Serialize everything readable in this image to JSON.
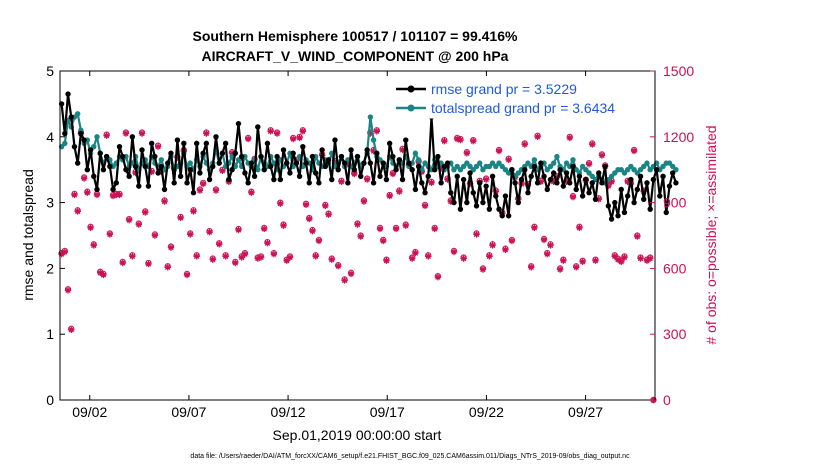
{
  "chart_data": {
    "type": "line",
    "title": "Southern Hemisphere 100517 / 101107 = 99.416%",
    "subtitle": "AIRCRAFT_V_WIND_COMPONENT @ 200 hPa",
    "xlabel": "Sep.01,2019 00:00:00 start",
    "ylabel_left": "rmse and totalspread",
    "ylabel_right": "# of obs: o=possible; ×=assimilated",
    "xlim": [
      0.5,
      30.5
    ],
    "ylim_left": [
      0,
      5
    ],
    "ylim_right": [
      0,
      1500
    ],
    "x_ticks": [
      {
        "x": 2,
        "label": "09/02"
      },
      {
        "x": 7,
        "label": "09/07"
      },
      {
        "x": 12,
        "label": "09/12"
      },
      {
        "x": 17,
        "label": "09/17"
      },
      {
        "x": 22,
        "label": "09/22"
      },
      {
        "x": 27,
        "label": "09/27"
      }
    ],
    "y_ticks_left": [
      "0",
      "1",
      "2",
      "3",
      "4",
      "5"
    ],
    "y_ticks_right": [
      "0",
      "300",
      "600",
      "900",
      "1200",
      "1500"
    ],
    "footer": "data file: /Users/raeder/DAI/ATM_forcXX/CAM6_setup/f.e21.FHIST_BGC.f09_025.CAM6assim.011/Diags_NTrS_2019-09/obs_diag_output.nc",
    "legend_position": "top-right",
    "colors": {
      "rmse": "#000000",
      "spread": "#1a8585",
      "obs": "#cc1155"
    },
    "series": [
      {
        "name": "rmse grand pr = 3.5229",
        "axis": "left",
        "values": [
          4.5,
          4.05,
          4.65,
          4.3,
          3.85,
          3.6,
          4.05,
          3.95,
          3.5,
          3.8,
          3.4,
          3.2,
          3.75,
          3.5,
          3.7,
          3.55,
          3.2,
          3.3,
          3.85,
          3.7,
          3.5,
          3.4,
          4.0,
          3.55,
          3.25,
          3.8,
          3.55,
          3.25,
          3.9,
          3.7,
          3.45,
          3.55,
          3.2,
          3.6,
          3.75,
          3.3,
          3.95,
          3.4,
          3.9,
          3.3,
          3.5,
          3.15,
          3.9,
          3.45,
          3.75,
          3.9,
          3.35,
          3.55,
          4.0,
          3.6,
          3.75,
          3.9,
          3.35,
          3.5,
          3.75,
          4.2,
          3.7,
          3.45,
          3.3,
          3.6,
          3.4,
          4.15,
          3.7,
          3.5,
          3.9,
          3.55,
          3.35,
          3.7,
          3.35,
          3.8,
          3.6,
          3.45,
          3.75,
          3.6,
          3.4,
          3.85,
          3.6,
          3.3,
          3.7,
          3.45,
          3.3,
          3.8,
          3.55,
          3.65,
          3.35,
          3.95,
          3.5,
          3.7,
          3.6,
          3.3,
          3.8,
          3.5,
          3.7,
          3.4,
          3.6,
          3.8,
          3.6,
          3.3,
          3.75,
          3.4,
          3.6,
          3.35,
          3.9,
          3.7,
          3.5,
          3.65,
          3.35,
          3.95,
          3.6,
          3.5,
          3.2,
          3.55,
          3.3,
          3.15,
          3.4,
          4.3,
          3.5,
          3.7,
          3.3,
          3.55,
          3.6,
          3.15,
          3.0,
          3.4,
          2.9,
          3.35,
          3.0,
          3.45,
          3.15,
          2.95,
          3.3,
          3.0,
          3.25,
          2.9,
          3.4,
          3.1,
          2.9,
          2.8,
          3.1,
          2.8,
          3.5,
          3.3,
          3.0,
          3.35,
          3.5,
          3.15,
          3.4,
          3.55,
          3.3,
          3.6,
          3.4,
          3.2,
          3.35,
          3.45,
          3.3,
          3.5,
          3.25,
          3.45,
          3.3,
          3.55,
          3.2,
          3.4,
          3.1,
          3.35,
          3.15,
          3.3,
          3.05,
          3.45,
          3.3,
          3.55,
          2.95,
          2.75,
          3.0,
          2.8,
          3.2,
          2.85,
          3.1,
          3.35,
          3.0,
          3.2,
          3.4,
          3.05,
          3.3,
          2.9,
          3.35,
          3.5,
          3.1,
          3.4,
          2.85,
          3.25,
          3.45,
          3.3
        ]
      },
      {
        "name": "totalspread grand pr = 3.6434",
        "axis": "left",
        "values": [
          3.85,
          3.9,
          4.25,
          4.15,
          4.3,
          4.35,
          4.1,
          3.9,
          3.95,
          3.75,
          3.85,
          4.0,
          3.75,
          3.6,
          3.7,
          3.65,
          3.55,
          3.6,
          3.7,
          3.65,
          3.7,
          3.55,
          3.6,
          3.7,
          3.5,
          3.6,
          3.65,
          3.55,
          3.7,
          3.6,
          3.55,
          3.65,
          3.5,
          3.55,
          3.7,
          3.5,
          3.55,
          3.6,
          3.75,
          3.55,
          3.6,
          3.5,
          3.65,
          3.55,
          3.7,
          3.6,
          3.5,
          3.6,
          3.8,
          3.6,
          3.75,
          3.55,
          3.6,
          3.7,
          3.55,
          3.65,
          3.55,
          3.7,
          3.6,
          3.55,
          3.65,
          3.5,
          3.7,
          3.6,
          3.55,
          3.7,
          3.6,
          3.5,
          3.65,
          3.55,
          3.6,
          3.75,
          3.55,
          3.6,
          3.7,
          3.55,
          3.65,
          3.6,
          3.5,
          3.7,
          3.6,
          3.55,
          3.65,
          3.6,
          3.75,
          3.55,
          3.6,
          3.7,
          3.55,
          3.65,
          3.55,
          3.6,
          3.7,
          3.55,
          3.6,
          3.75,
          4.3,
          3.95,
          3.7,
          3.65,
          3.6,
          3.55,
          3.7,
          3.6,
          3.55,
          3.65,
          3.6,
          3.7,
          3.55,
          3.6,
          3.75,
          3.65,
          3.5,
          3.6,
          3.55,
          3.5,
          3.65,
          3.55,
          3.6,
          3.5,
          3.55,
          3.6,
          3.5,
          3.55,
          3.5,
          3.55,
          3.6,
          3.55,
          3.5,
          3.55,
          3.6,
          3.5,
          3.55,
          3.55,
          3.6,
          3.55,
          3.6,
          3.55,
          3.5,
          3.45,
          3.5,
          3.4,
          3.45,
          3.5,
          3.55,
          3.6,
          3.55,
          3.65,
          3.5,
          3.55,
          3.6,
          3.5,
          3.55,
          3.6,
          3.7,
          3.55,
          3.5,
          3.6,
          3.55,
          3.65,
          3.5,
          3.45,
          3.55,
          3.5,
          3.45,
          3.4,
          3.35,
          3.4,
          3.35,
          3.3,
          3.35,
          3.4,
          3.45,
          3.5,
          3.5,
          3.45,
          3.5,
          3.55,
          3.5,
          3.45,
          3.5,
          3.55,
          3.6,
          3.5,
          3.55,
          3.6,
          3.5,
          3.55,
          3.6,
          3.6,
          3.55,
          3.5
        ]
      },
      {
        "name": "possible",
        "axis": "right",
        "values": [
          670,
          680,
          505,
          325,
          940,
          865,
          1220,
          1015,
          950,
          790,
          710,
          940,
          585,
          575,
          1210,
          760,
          935,
          940,
          940,
          630,
          1220,
          825,
          660,
          1040,
          805,
          1220,
          860,
          625,
          1045,
          755,
          1160,
          1045,
          910,
          610,
          700,
          1060,
          1110,
          835,
          1140,
          575,
          760,
          865,
          660,
          960,
          990,
          1220,
          770,
          645,
          960,
          715,
          1050,
          660,
          1000,
          1130,
          630,
          780,
          655,
          670,
          1195,
          950,
          1100,
          650,
          655,
          785,
          720,
          1230,
          670,
          1220,
          900,
          800,
          640,
          655,
          1195,
          1095,
          1200,
          1230,
          895,
          830,
          775,
          660,
          730,
          1120,
          890,
          850,
          645,
          1090,
          615,
          1000,
          550,
          1080,
          580,
          1035,
          805,
          750,
          910,
          1010,
          1220,
          1140,
          1230,
          785,
          730,
          640,
          935,
          1035,
          785,
          955,
          1145,
          800,
          1075,
          650,
          675,
          1090,
          1045,
          890,
          660,
          995,
          785,
          565,
          1060,
          1185,
          1010,
          910,
          680,
          1195,
          1190,
          650,
          1130,
          990,
          1185,
          760,
          1000,
          600,
          1010,
          660,
          710,
          955,
          1140,
          855,
          690,
          1100,
          730,
          1020,
          920,
          990,
          1170,
          985,
          610,
          790,
          1205,
          1000,
          735,
          670,
          710,
          1000,
          1020,
          600,
          640,
          1000,
          1200,
          930,
          610,
          790,
          635,
          1005,
          1080,
          1170,
          640,
          920,
          1120,
          1070,
          980,
          1000,
          660,
          645,
          635,
          655,
          1000,
          990,
          1140,
          750,
          650,
          955,
          640,
          650,
          0
        ]
      },
      {
        "name": "assimilated",
        "axis": "right",
        "values": [
          665,
          675,
          500,
          320,
          935,
          860,
          1215,
          1010,
          945,
          785,
          705,
          935,
          580,
          570,
          1205,
          755,
          930,
          935,
          935,
          625,
          1215,
          820,
          655,
          1035,
          800,
          1215,
          855,
          620,
          1040,
          750,
          1155,
          1040,
          905,
          605,
          695,
          1055,
          1105,
          830,
          1135,
          570,
          755,
          860,
          655,
          955,
          985,
          1215,
          765,
          640,
          955,
          710,
          1045,
          655,
          995,
          1125,
          625,
          775,
          650,
          665,
          1190,
          945,
          1095,
          645,
          650,
          780,
          715,
          1225,
          665,
          1215,
          895,
          795,
          635,
          650,
          1190,
          1090,
          1195,
          1225,
          890,
          825,
          770,
          655,
          725,
          1115,
          885,
          845,
          640,
          1085,
          610,
          995,
          545,
          1075,
          575,
          1030,
          800,
          745,
          905,
          1005,
          1215,
          1135,
          1225,
          780,
          725,
          635,
          930,
          1030,
          780,
          950,
          1140,
          795,
          1070,
          645,
          670,
          1085,
          1040,
          885,
          655,
          990,
          780,
          560,
          1055,
          1180,
          1005,
          905,
          675,
          1190,
          1185,
          645,
          1125,
          985,
          1180,
          755,
          995,
          595,
          1005,
          655,
          705,
          950,
          1135,
          850,
          685,
          1095,
          725,
          1015,
          915,
          985,
          1165,
          980,
          605,
          785,
          1200,
          995,
          730,
          665,
          705,
          995,
          1015,
          595,
          635,
          995,
          1195,
          925,
          605,
          785,
          630,
          1000,
          1075,
          1165,
          635,
          915,
          1115,
          1065,
          975,
          995,
          655,
          640,
          630,
          650,
          995,
          985,
          1135,
          745,
          645,
          950,
          635,
          645,
          0
        ]
      }
    ]
  }
}
